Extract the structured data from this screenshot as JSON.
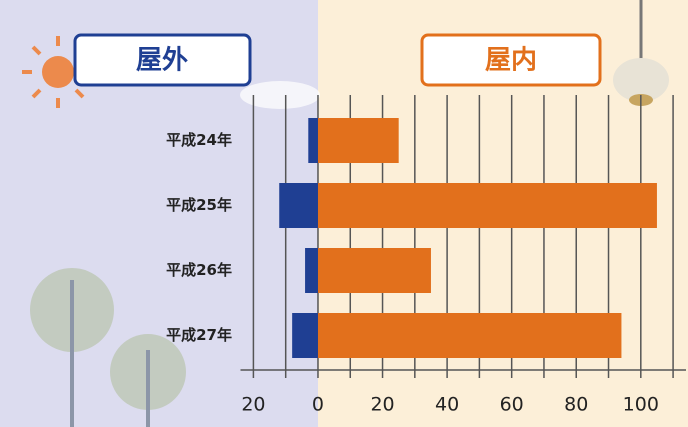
{
  "chart_data": {
    "type": "bar",
    "orientation": "horizontal",
    "categories": [
      "平成24年",
      "平成25年",
      "平成26年",
      "平成27年"
    ],
    "series": [
      {
        "name": "屋外",
        "color": "#1f3f93",
        "values": [
          -3,
          -12,
          -4,
          -8
        ]
      },
      {
        "name": "屋内",
        "color": "#e2701c",
        "values": [
          25,
          105,
          35,
          94
        ]
      }
    ],
    "xlim": [
      -24,
      114
    ],
    "xticks": [
      {
        "value": -20,
        "label": "20"
      },
      0,
      20,
      40,
      60,
      80,
      100
    ],
    "minor_xticks": [
      -10,
      10,
      30,
      50,
      70,
      90,
      110
    ],
    "grid": true
  }
}
